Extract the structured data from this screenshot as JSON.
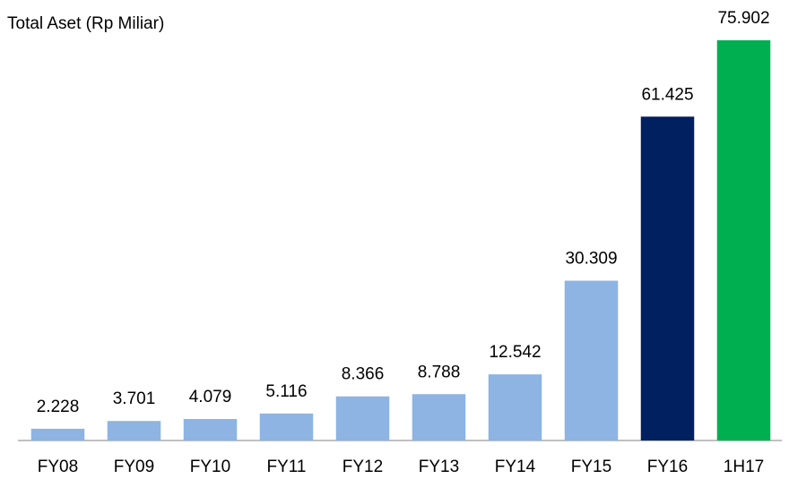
{
  "chart_data": {
    "type": "bar",
    "title": "Total Aset (Rp Miliar)",
    "categories": [
      "FY08",
      "FY09",
      "FY10",
      "FY11",
      "FY12",
      "FY13",
      "FY14",
      "FY15",
      "FY16",
      "1H17"
    ],
    "values": [
      2228,
      3701,
      4079,
      5116,
      8366,
      8788,
      12542,
      30309,
      61425,
      75902
    ],
    "value_labels": [
      "2.228",
      "3.701",
      "4.079",
      "5.116",
      "8.366",
      "8.788",
      "12.542",
      "30.309",
      "61.425",
      "75.902"
    ],
    "colors": [
      "#8db4e2",
      "#8db4e2",
      "#8db4e2",
      "#8db4e2",
      "#8db4e2",
      "#8db4e2",
      "#8db4e2",
      "#8db4e2",
      "#002060",
      "#00b050"
    ]
  }
}
